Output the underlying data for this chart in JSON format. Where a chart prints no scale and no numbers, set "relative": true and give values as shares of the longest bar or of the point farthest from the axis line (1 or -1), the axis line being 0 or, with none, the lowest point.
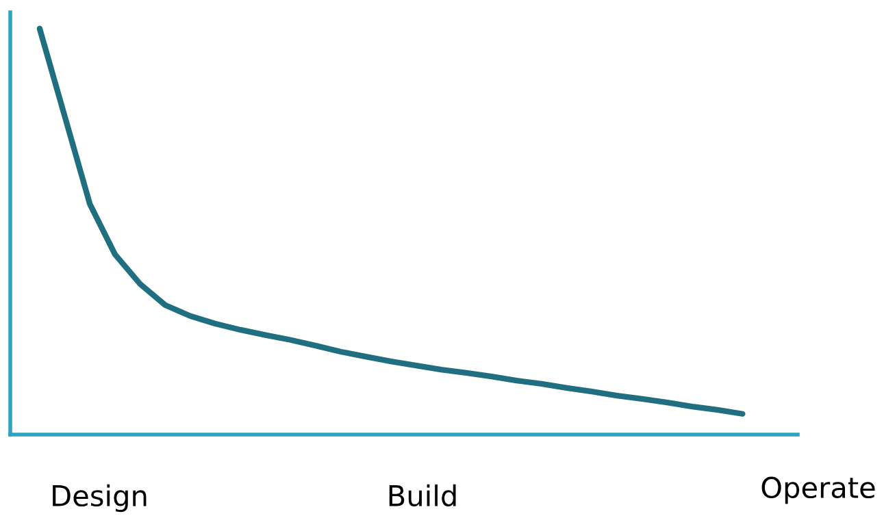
{
  "chart_data": {
    "type": "line",
    "relative": true,
    "grid": false,
    "marker": "none",
    "line_style": "solid",
    "categories": [
      null,
      null,
      null,
      null,
      null,
      null,
      null,
      null,
      null,
      null,
      null,
      null,
      null,
      null,
      null,
      null,
      null,
      null,
      null,
      null,
      null,
      null,
      null,
      null,
      null,
      null,
      null,
      null,
      null
    ],
    "series": [
      {
        "color": "#1f6f80",
        "values": [
          1.0,
          0.784,
          0.568,
          0.444,
          0.371,
          0.319,
          0.292,
          0.273,
          0.258,
          0.245,
          0.233,
          0.219,
          0.204,
          0.192,
          0.18,
          0.17,
          0.16,
          0.152,
          0.143,
          0.133,
          0.125,
          0.115,
          0.106,
          0.096,
          0.088,
          0.079,
          0.069,
          0.061,
          0.051
        ]
      }
    ],
    "annotations": [
      "Design",
      "Build",
      "Operate"
    ]
  }
}
